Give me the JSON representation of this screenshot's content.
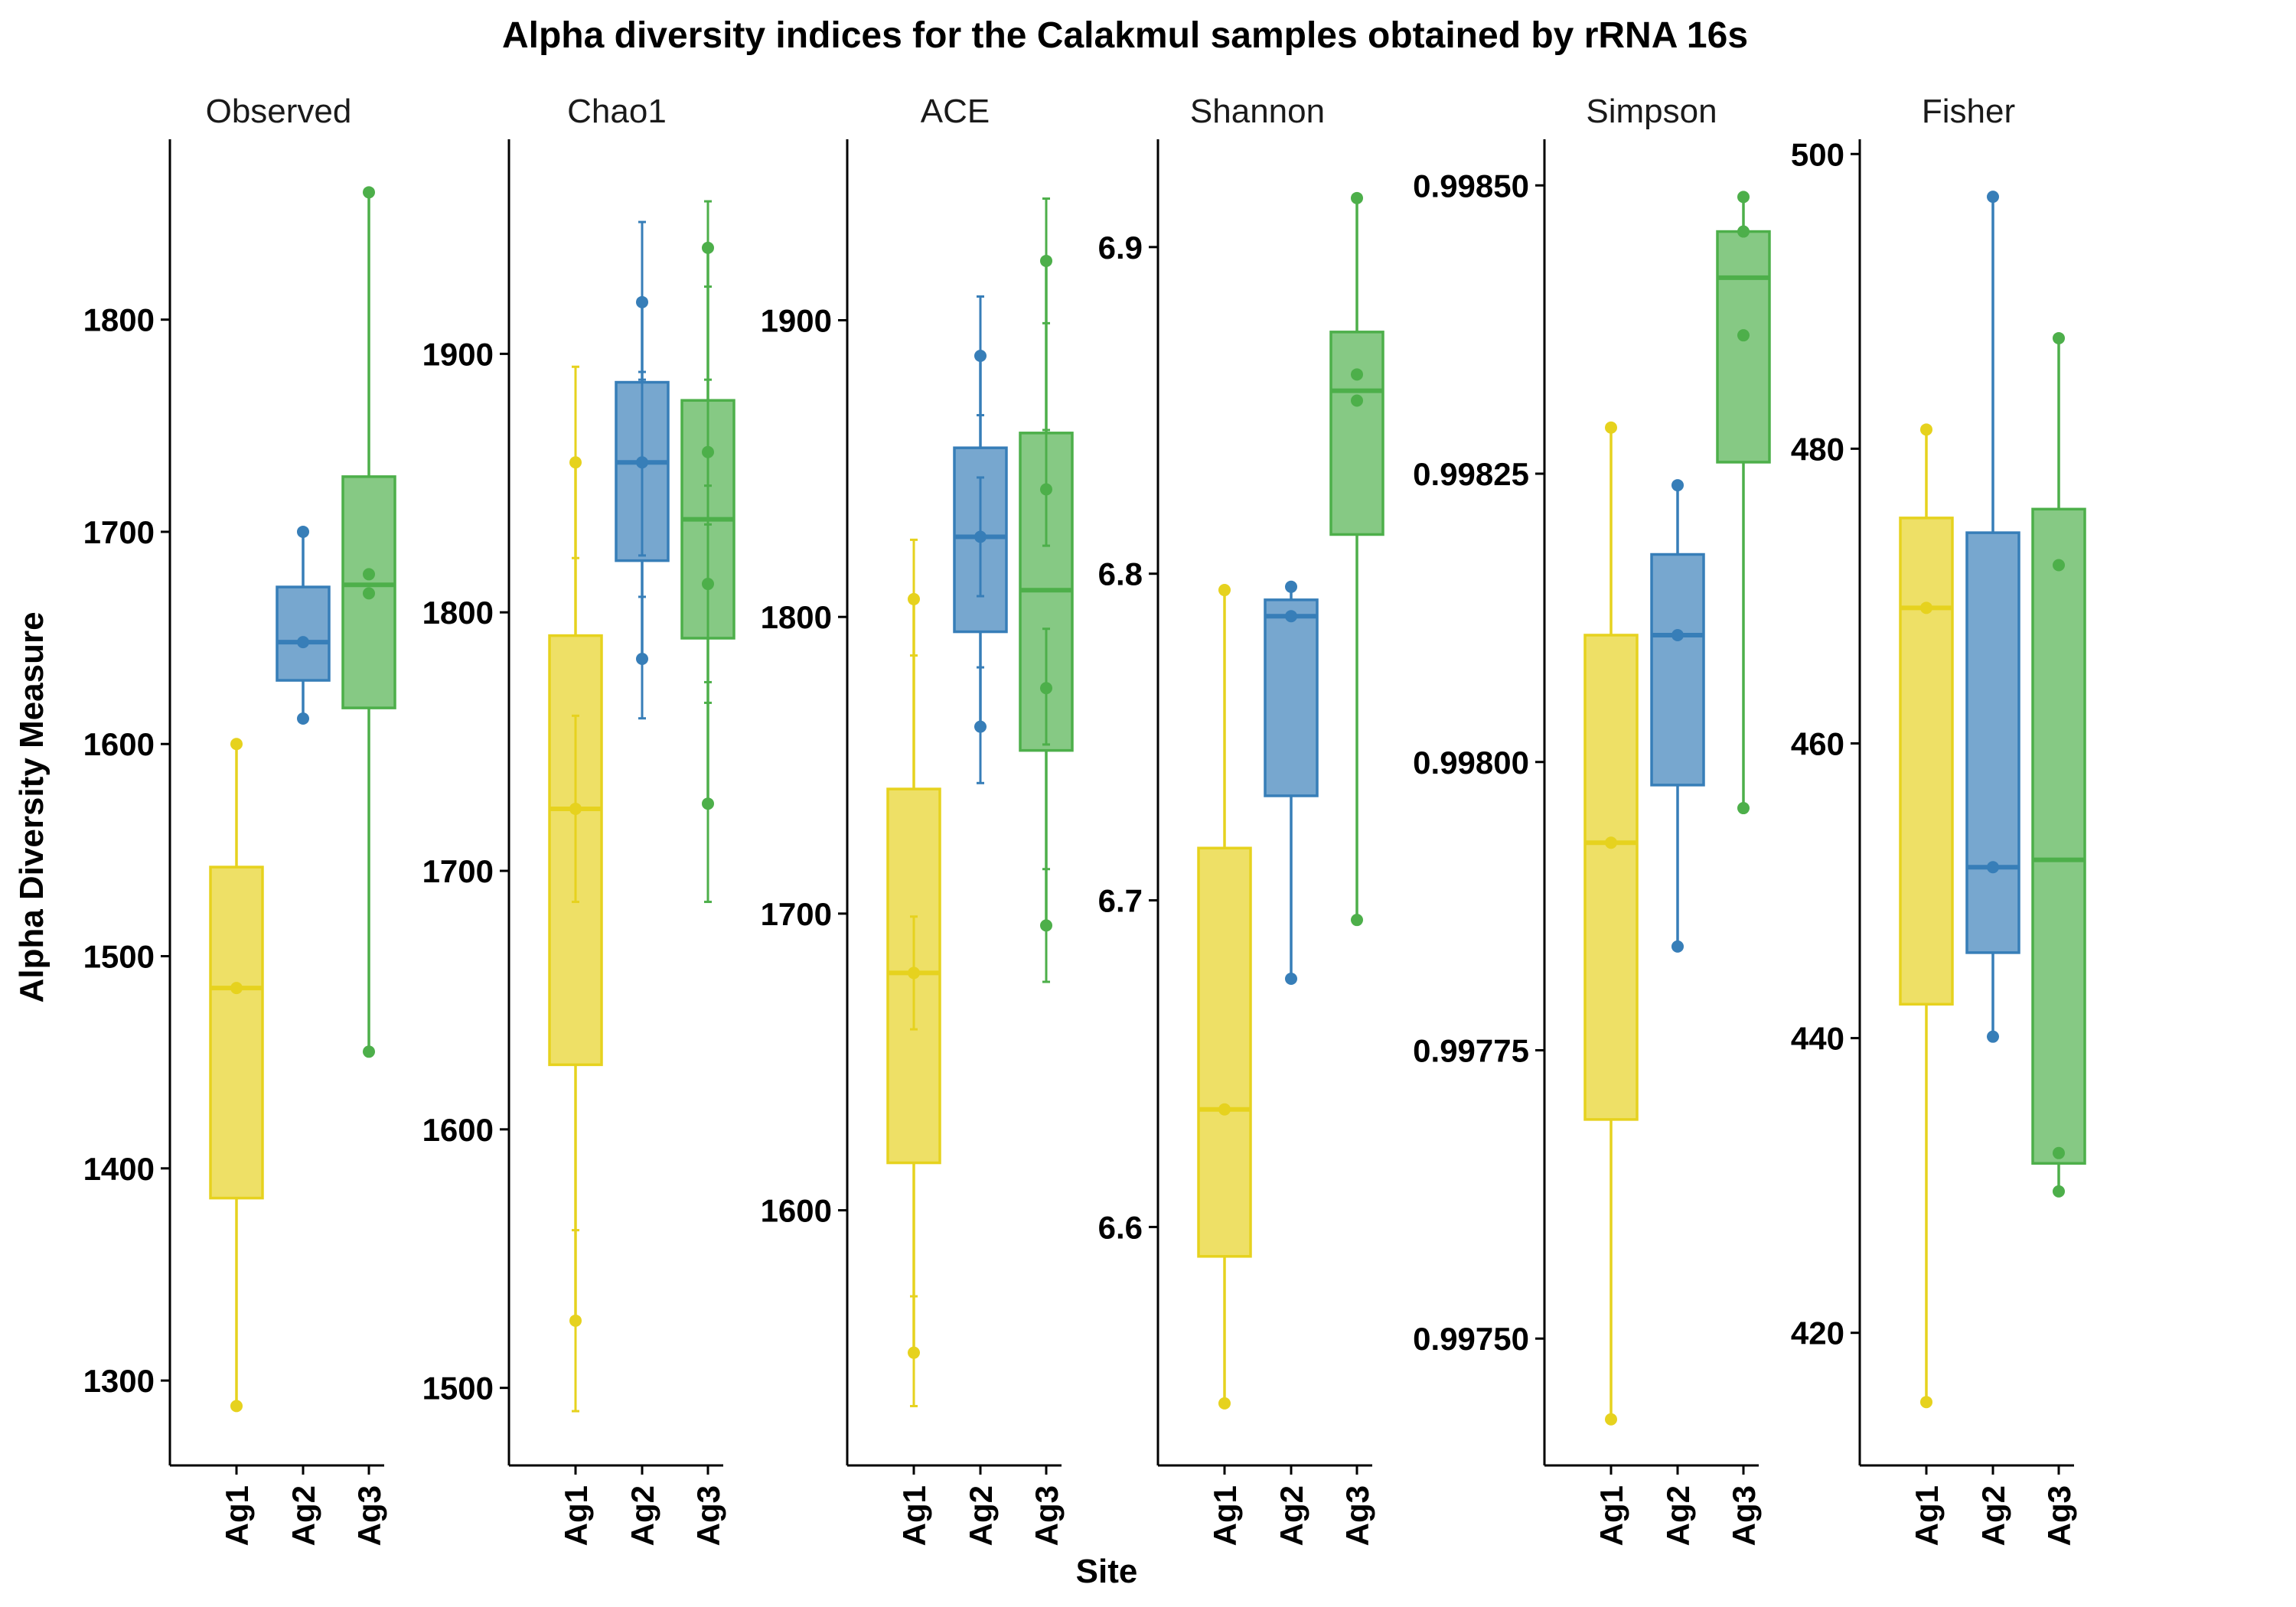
{
  "chart_data": {
    "type": "box",
    "title": "Alpha diversity indices for the Calakmul samples obtained by rRNA 16s",
    "xlabel": "Site",
    "ylabel": "Alpha Diversity Measure",
    "categories": [
      "Ag1",
      "Ag2",
      "Ag3"
    ],
    "colors": {
      "Ag1": "#E6D21E",
      "Ag2": "#377EB8",
      "Ag3": "#4DAF4A"
    },
    "panels": [
      {
        "name": "Observed",
        "ylim": [
          1260,
          1885
        ],
        "yticks": [
          "1300",
          "1400",
          "1500",
          "1600",
          "1700",
          "1800"
        ],
        "has_errorbars": false,
        "groups": [
          {
            "site": "Ag1",
            "min": 1288,
            "q1": 1386,
            "median": 1485,
            "q3": 1542,
            "max": 1600,
            "points": [
              1288,
              1485,
              1600
            ]
          },
          {
            "site": "Ag2",
            "min": 1612,
            "q1": 1630,
            "median": 1648,
            "q3": 1674,
            "max": 1700,
            "points": [
              1612,
              1648,
              1700
            ]
          },
          {
            "site": "Ag3",
            "min": 1455,
            "q1": 1617,
            "median": 1675,
            "q3": 1726,
            "max": 1860,
            "points": [
              1455,
              1671,
              1680,
              1860
            ]
          }
        ]
      },
      {
        "name": "Chao1",
        "ylim": [
          1470,
          1983
        ],
        "yticks": [
          "1500",
          "1600",
          "1700",
          "1800",
          "1900"
        ],
        "has_errorbars": true,
        "groups": [
          {
            "site": "Ag1",
            "min": 1526,
            "q1": 1625,
            "median": 1724,
            "q3": 1791,
            "max": 1858,
            "points": [
              1526,
              1724,
              1858
            ],
            "errorbars": [
              [
                1491,
                1561
              ],
              [
                1688,
                1760
              ],
              [
                1821,
                1895
              ]
            ]
          },
          {
            "site": "Ag2",
            "min": 1782,
            "q1": 1820,
            "median": 1858,
            "q3": 1889,
            "max": 1920,
            "points": [
              1782,
              1858,
              1920
            ],
            "errorbars": [
              [
                1759,
                1806
              ],
              [
                1822,
                1893
              ],
              [
                1890,
                1951
              ]
            ]
          },
          {
            "site": "Ag3",
            "min": 1726,
            "q1": 1790,
            "median": 1836,
            "q3": 1882,
            "max": 1941,
            "points": [
              1726,
              1811,
              1862,
              1941
            ],
            "errorbars": [
              [
                1688,
                1765
              ],
              [
                1773,
                1849
              ],
              [
                1834,
                1890
              ],
              [
                1926,
                1959
              ]
            ]
          }
        ]
      },
      {
        "name": "ACE",
        "ylim": [
          1514,
          1961
        ],
        "yticks": [
          "1600",
          "1700",
          "1800",
          "1900"
        ],
        "has_errorbars": true,
        "groups": [
          {
            "site": "Ag1",
            "min": 1552,
            "q1": 1616,
            "median": 1680,
            "q3": 1742,
            "max": 1806,
            "points": [
              1552,
              1680,
              1806
            ],
            "errorbars": [
              [
                1534,
                1571
              ],
              [
                1661,
                1699
              ],
              [
                1787,
                1826
              ]
            ]
          },
          {
            "site": "Ag2",
            "min": 1763,
            "q1": 1795,
            "median": 1827,
            "q3": 1857,
            "max": 1888,
            "points": [
              1763,
              1827,
              1888
            ],
            "errorbars": [
              [
                1744,
                1783
              ],
              [
                1807,
                1847
              ],
              [
                1868,
                1908
              ]
            ]
          },
          {
            "site": "Ag3",
            "min": 1696,
            "q1": 1755,
            "median": 1809,
            "q3": 1862,
            "max": 1920,
            "points": [
              1696,
              1776,
              1843,
              1920
            ],
            "errorbars": [
              [
                1677,
                1715
              ],
              [
                1757,
                1796
              ],
              [
                1824,
                1863
              ],
              [
                1899,
                1941
              ]
            ]
          }
        ]
      },
      {
        "name": "Shannon",
        "ylim": [
          6.527,
          6.933
        ],
        "yticks": [
          "6.6",
          "6.7",
          "6.8",
          "6.9"
        ],
        "has_errorbars": false,
        "groups": [
          {
            "site": "Ag1",
            "min": 6.546,
            "q1": 6.591,
            "median": 6.636,
            "q3": 6.716,
            "max": 6.795,
            "points": [
              6.546,
              6.636,
              6.795
            ]
          },
          {
            "site": "Ag2",
            "min": 6.676,
            "q1": 6.732,
            "median": 6.787,
            "q3": 6.792,
            "max": 6.796,
            "points": [
              6.676,
              6.787,
              6.796
            ]
          },
          {
            "site": "Ag3",
            "min": 6.694,
            "q1": 6.812,
            "median": 6.856,
            "q3": 6.874,
            "max": 6.915,
            "points": [
              6.694,
              6.853,
              6.861,
              6.915
            ]
          }
        ]
      },
      {
        "name": "Simpson",
        "ylim": [
          0.99739,
          0.99854
        ],
        "yticks": [
          "0.99750",
          "0.99775",
          "0.99800",
          "0.99825",
          "0.99850"
        ],
        "has_errorbars": false,
        "groups": [
          {
            "site": "Ag1",
            "min": 0.99743,
            "q1": 0.99769,
            "median": 0.99793,
            "q3": 0.99811,
            "max": 0.99829,
            "points": [
              0.99743,
              0.99793,
              0.99829
            ]
          },
          {
            "site": "Ag2",
            "min": 0.99784,
            "q1": 0.99798,
            "median": 0.99811,
            "q3": 0.99818,
            "max": 0.99824,
            "points": [
              0.99784,
              0.99811,
              0.99824
            ]
          },
          {
            "site": "Ag3",
            "min": 0.99796,
            "q1": 0.99826,
            "median": 0.99842,
            "q3": 0.99846,
            "max": 0.99849,
            "points": [
              0.99796,
              0.99837,
              0.99846,
              0.99849
            ]
          }
        ]
      },
      {
        "name": "Fisher",
        "ylim": [
          411,
          501
        ],
        "yticks": [
          "420",
          "440",
          "460",
          "480",
          "500"
        ],
        "has_errorbars": false,
        "groups": [
          {
            "site": "Ag1",
            "min": 415.3,
            "q1": 442.3,
            "median": 469.2,
            "q3": 475.3,
            "max": 481.3,
            "points": [
              415.3,
              469.2,
              481.3
            ]
          },
          {
            "site": "Ag2",
            "min": 440.1,
            "q1": 445.8,
            "median": 451.6,
            "q3": 474.3,
            "max": 497.1,
            "points": [
              440.1,
              451.6,
              497.1
            ]
          },
          {
            "site": "Ag3",
            "min": 429.6,
            "q1": 431.5,
            "median": 452.1,
            "q3": 475.9,
            "max": 487.5,
            "points": [
              429.6,
              432.2,
              472.1,
              487.5
            ]
          }
        ]
      }
    ]
  }
}
